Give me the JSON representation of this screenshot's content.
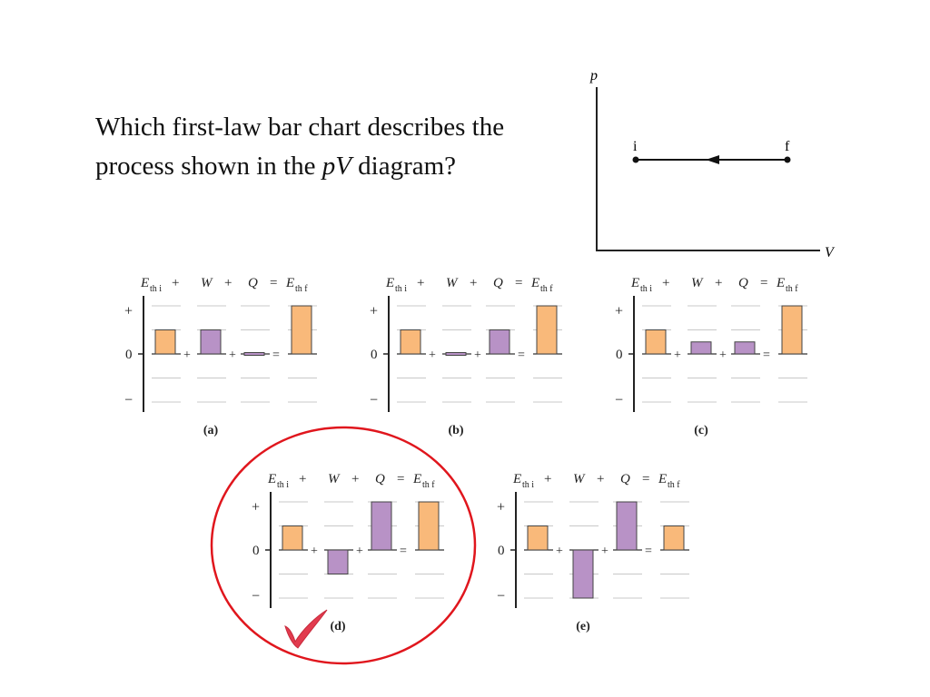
{
  "question": {
    "part1": "Which first-law bar chart describes the",
    "part2": "process shown in the ",
    "italic": "pV",
    "part3": " diagram?"
  },
  "pv_diagram": {
    "y_axis_label": "p",
    "x_axis_label": "V",
    "start_label": "i",
    "end_label": "f"
  },
  "colors": {
    "energy_bar": "#f9b97a",
    "work_heat_bar": "#b892c6",
    "bar_outline": "#444444",
    "gridline": "#c8c8c8",
    "check_mark": "#e23b4e",
    "circle": "#e0161d"
  },
  "chart_data": [
    {
      "type": "bar",
      "label": "(a)",
      "categories": [
        "E_th i",
        "W",
        "Q",
        "E_th f"
      ],
      "values": [
        1,
        1,
        0,
        2
      ],
      "ylim": [
        -2,
        2
      ]
    },
    {
      "type": "bar",
      "label": "(b)",
      "categories": [
        "E_th i",
        "W",
        "Q",
        "E_th f"
      ],
      "values": [
        1,
        0,
        1,
        2
      ],
      "ylim": [
        -2,
        2
      ]
    },
    {
      "type": "bar",
      "label": "(c)",
      "categories": [
        "E_th i",
        "W",
        "Q",
        "E_th f"
      ],
      "values": [
        1,
        0.5,
        0.5,
        2
      ],
      "ylim": [
        -2,
        2
      ]
    },
    {
      "type": "bar",
      "label": "(d)",
      "categories": [
        "E_th i",
        "W",
        "Q",
        "E_th f"
      ],
      "values": [
        1,
        -1,
        2,
        2
      ],
      "ylim": [
        -2,
        2
      ],
      "highlighted": true
    },
    {
      "type": "bar",
      "label": "(e)",
      "categories": [
        "E_th i",
        "W",
        "Q",
        "E_th f"
      ],
      "values": [
        1,
        -2,
        2,
        1
      ],
      "ylim": [
        -2,
        2
      ]
    }
  ],
  "axis_labels": {
    "plus": "+",
    "zero": "0",
    "minus": "−"
  },
  "header_symbols": {
    "e": "E",
    "sub_initial": "th i",
    "sub_final": "th f",
    "plus": "+",
    "w": "W",
    "q": "Q",
    "equals": "="
  }
}
